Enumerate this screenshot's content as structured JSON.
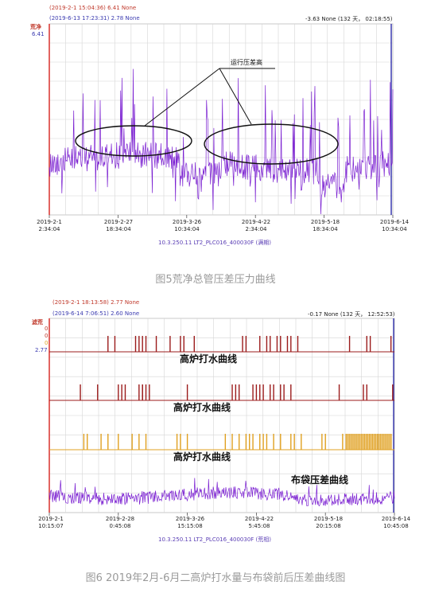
{
  "chart_data": [
    {
      "type": "line",
      "cursor_start": "(2019-2-1 15:04:36) 6.41 None",
      "cursor_end": "(2019-6-13 17:23:31) 2.78 None",
      "delta_readout": "-3.63 None (132 天， 02:18:55)",
      "y_tag": "荒净",
      "y_value": "6.41",
      "x_ticks": [
        {
          "date": "2019-2-1",
          "time": "2:34:04"
        },
        {
          "date": "2019-2-27",
          "time": "18:34:04"
        },
        {
          "date": "2019-3-26",
          "time": "10:34:04"
        },
        {
          "date": "2019-4-22",
          "time": "2:34:04"
        },
        {
          "date": "2019-5-18",
          "time": "18:34:04"
        },
        {
          "date": "2019-6-14",
          "time": "10:34:04"
        }
      ],
      "source_label": "10.3.250.11 LT2_PLC016_400030F (满期)",
      "annotation": "运行压差高",
      "caption": "图5荒净总管压差压力曲线",
      "grid": true,
      "series_color": "#7a1fd1"
    },
    {
      "type": "line",
      "cursor_start": "(2019-2-1 18:13:58) 2.77 None",
      "cursor_end": "(2019-6-14 7:06:51) 2.60 None",
      "delta_readout": "-0.17 None (132 天， 12:52:53)",
      "y_tags": [
        "滤荒",
        "0",
        "0",
        "0"
      ],
      "y_value": "2.77",
      "x_ticks": [
        {
          "date": "2019-2-1",
          "time": "10:15:07"
        },
        {
          "date": "2019-2-28",
          "time": "0:45:08"
        },
        {
          "date": "2019-3-26",
          "time": "15:15:08"
        },
        {
          "date": "2019-4-22",
          "time": "5:45:08"
        },
        {
          "date": "2019-5-18",
          "time": "20:15:08"
        },
        {
          "date": "2019-6-14",
          "time": "10:45:08"
        }
      ],
      "source_label": "10.3.250.11 LT2_PLC016_400030F (荒相)",
      "annotations": [
        "高炉打水曲线",
        "高炉打水曲线",
        "高炉打水曲线",
        "布袋压差曲线"
      ],
      "caption": "图6 2019年2月-6月二高炉打水量与布袋前后压差曲线图",
      "grid": true,
      "series_colors": [
        "#9b1b1b",
        "#9b1b1b",
        "#e0a020",
        "#7a1fd1"
      ]
    }
  ]
}
